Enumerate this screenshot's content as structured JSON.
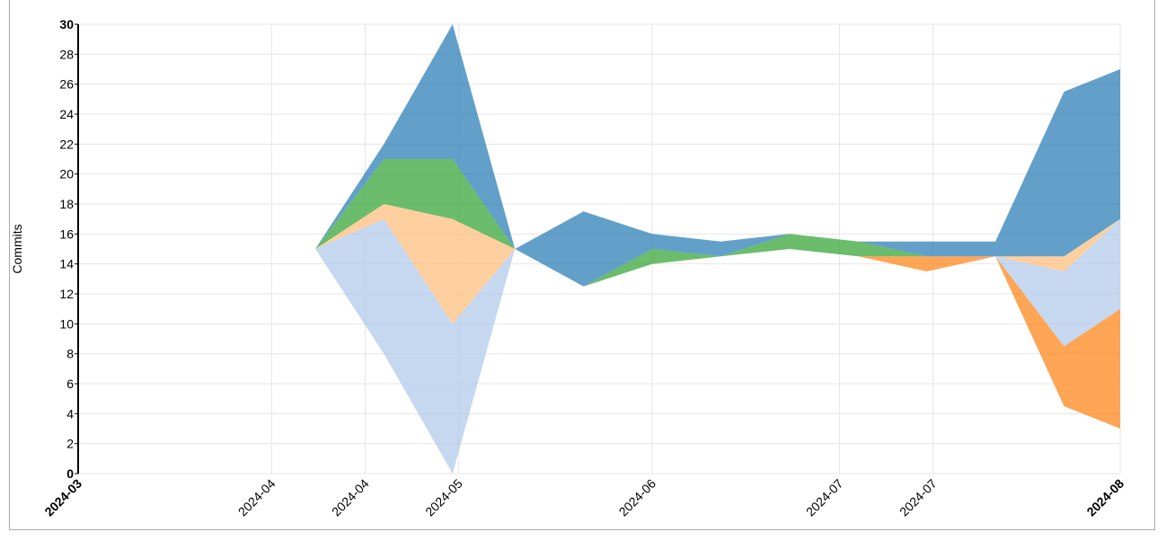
{
  "chart_data": {
    "type": "area",
    "stacked": "streamgraph",
    "ylabel": "Commits",
    "xlabel": "",
    "ylim": [
      0,
      30
    ],
    "yticks": [
      "0",
      "2",
      "4",
      "6",
      "8",
      "10",
      "12",
      "14",
      "16",
      "18",
      "20",
      "22",
      "24",
      "26",
      "28",
      "30"
    ],
    "xticks": [
      "2024-03",
      "2024-04",
      "2024-04",
      "2024-05",
      "2024-06",
      "2024-07",
      "2024-07",
      "2024-08"
    ],
    "grid": true,
    "legend": "none",
    "x": [
      "2024-04-08",
      "2024-04-19",
      "2024-04-30",
      "2024-05-10",
      "2024-05-21",
      "2024-06-01",
      "2024-06-12",
      "2024-06-23",
      "2024-07-04",
      "2024-07-15",
      "2024-07-26",
      "2024-08-06",
      "2024-08-15"
    ],
    "series": [
      {
        "color": "#ff7f0e",
        "values": [
          0,
          0,
          0,
          0,
          0,
          0,
          0,
          0,
          0,
          1,
          0,
          4,
          8
        ]
      },
      {
        "color": "#aec7e8",
        "values": [
          0,
          9,
          10,
          0,
          0,
          0,
          0,
          0,
          0,
          0,
          0,
          5,
          6
        ]
      },
      {
        "color": "#ffbb78",
        "values": [
          0,
          1,
          7,
          0,
          0,
          0,
          0,
          0,
          0,
          0,
          0,
          1,
          0
        ]
      },
      {
        "color": "#2ca02c",
        "values": [
          0,
          3,
          4,
          0,
          0,
          1,
          0,
          1,
          1,
          0,
          0,
          0,
          0
        ]
      },
      {
        "color": "#1f77b4",
        "values": [
          0,
          1,
          9,
          0,
          5,
          1,
          1,
          0,
          0,
          1,
          1,
          11,
          10
        ]
      }
    ],
    "baseline": [
      15,
      8,
      0,
      15,
      12.5,
      14,
      14.5,
      15,
      14.5,
      13.5,
      14.5,
      4.5,
      3
    ],
    "colors": {
      "grid": "#e6e6e6",
      "axis": "#000000",
      "frame": "#a9a9a9"
    },
    "opacity": 0.7
  }
}
